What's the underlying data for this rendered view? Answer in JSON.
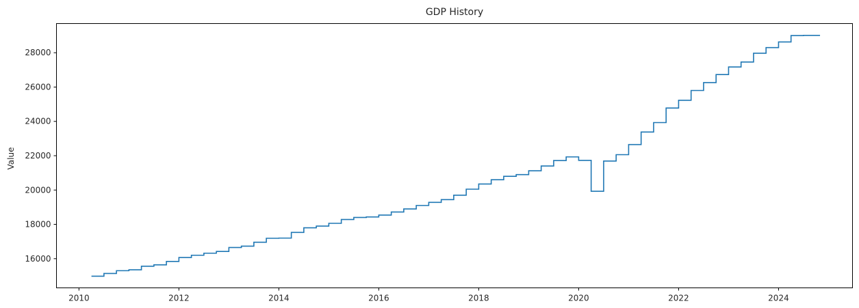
{
  "chart_data": {
    "type": "line",
    "step": true,
    "title": "GDP History",
    "xlabel": "",
    "ylabel": "Value",
    "xlim": [
      2009.55,
      2025.48
    ],
    "ylim": [
      14300,
      29700
    ],
    "x_ticks": [
      2010,
      2012,
      2014,
      2016,
      2018,
      2020,
      2022,
      2024
    ],
    "y_ticks": [
      16000,
      18000,
      20000,
      22000,
      24000,
      26000,
      28000
    ],
    "grid": false,
    "line_color": "#1f77b4",
    "series": [
      {
        "x": [
          2010.25,
          2010.5,
          2010.75,
          2011.0,
          2011.25,
          2011.5,
          2011.75,
          2012.0,
          2012.25,
          2012.5,
          2012.75,
          2013.0,
          2013.25,
          2013.5,
          2013.75,
          2014.0,
          2014.25,
          2014.5,
          2014.75,
          2015.0,
          2015.25,
          2015.5,
          2015.75,
          2016.0,
          2016.25,
          2016.5,
          2016.75,
          2017.0,
          2017.25,
          2017.5,
          2017.75,
          2018.0,
          2018.25,
          2018.5,
          2018.75,
          2019.0,
          2019.25,
          2019.5,
          2019.75,
          2020.0,
          2020.25,
          2020.5,
          2020.75,
          2021.0,
          2021.25,
          2021.5,
          2021.75,
          2022.0,
          2022.25,
          2022.5,
          2022.75,
          2023.0,
          2023.25,
          2023.5,
          2023.75,
          2024.0,
          2024.25,
          2024.5,
          2024.83
        ],
        "values": [
          14980,
          15140,
          15300,
          15350,
          15560,
          15640,
          15840,
          16070,
          16200,
          16320,
          16420,
          16650,
          16730,
          16960,
          17190,
          17200,
          17530,
          17800,
          17900,
          18060,
          18280,
          18400,
          18430,
          18540,
          18720,
          18900,
          19100,
          19280,
          19440,
          19700,
          20050,
          20350,
          20600,
          20800,
          20900,
          21120,
          21400,
          21720,
          21930,
          21730,
          19930,
          21690,
          22060,
          22650,
          23380,
          23930,
          24780,
          25230,
          25800,
          26260,
          26730,
          27170,
          27460,
          27970,
          28300,
          28630,
          29000,
          29010,
          29010
        ]
      }
    ]
  }
}
